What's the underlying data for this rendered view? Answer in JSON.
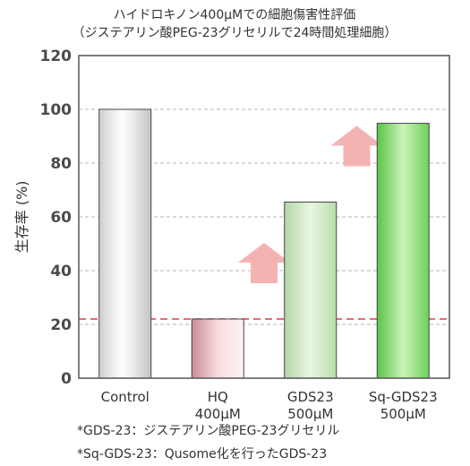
{
  "chart_data": {
    "type": "bar",
    "title_lines": [
      "ハイドロキノン400μMでの細胞傷害性評価",
      "（ジステアリン酸PEG-23グリセリルで24時間処理細胞）"
    ],
    "ylabel": "生存率 (%)",
    "xlabel": "",
    "ylim": [
      0,
      120
    ],
    "y_ticks": [
      0,
      20,
      40,
      60,
      80,
      100,
      120
    ],
    "grid": "horizontal dashed",
    "categories": [
      [
        "Control"
      ],
      [
        "HQ",
        "400μM"
      ],
      [
        "GDS23",
        "500μM"
      ],
      [
        "Sq-GDS23",
        "500μM"
      ]
    ],
    "values": [
      100,
      22,
      65.5,
      94.8
    ],
    "bar_colors": [
      "#e4e4e4",
      "#e9b9bd",
      "#c9e6bf",
      "#7ed66a"
    ],
    "reference_line": {
      "value": 22,
      "color": "#e05a6a",
      "style": "dashed"
    },
    "arrows": [
      {
        "between": [
          1,
          2
        ],
        "color": "#f4b3b3"
      },
      {
        "between": [
          2,
          3
        ],
        "color": "#f4b3b3"
      }
    ],
    "footnotes": [
      "*GDS-23：ジステアリン酸PEG-23グリセリル",
      "*Sq-GDS-23：Qusome化を行ったGDS-23"
    ]
  }
}
